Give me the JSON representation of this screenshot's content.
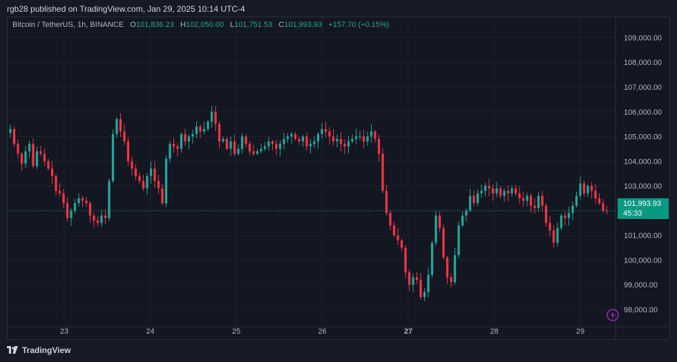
{
  "header": {
    "publisher": "rgb28 published on TradingView.com, Jan 29, 2025 10:14 UTC-4"
  },
  "legend": {
    "symbol": "Bitcoin / TetherUS, 1h, BINANCE",
    "o_label": "O",
    "o_value": "101,836.23",
    "h_label": "H",
    "h_value": "102,050.00",
    "l_label": "L",
    "l_value": "101,751.53",
    "c_label": "C",
    "c_value": "101,993.93",
    "change": "+157.70 (+0.15%)"
  },
  "price_tag": {
    "price": "101,993.93",
    "countdown": "45:33"
  },
  "footer": {
    "brand": "TradingView"
  },
  "colors": {
    "up": "#26a69a",
    "down": "#f23645",
    "background": "#131722",
    "grid": "#1e222d",
    "last_price": "#089981"
  },
  "chart_data": {
    "type": "candlestick",
    "x_ticks": [
      "23",
      "24",
      "25",
      "26",
      "27",
      "28",
      "29"
    ],
    "y_ticks": [
      "98,000.00",
      "99,000.00",
      "100,000.00",
      "101,000.00",
      "102,000.00",
      "103,000.00",
      "104,000.00",
      "105,000.00",
      "106,000.00",
      "107,000.00",
      "108,000.00",
      "109,000.00"
    ],
    "ylim": [
      97300,
      109600
    ],
    "last_price": 101993.93,
    "candles_approx_close": [
      105300,
      104700,
      104300,
      103900,
      104400,
      104700,
      103800,
      104400,
      104300,
      104000,
      103700,
      103400,
      102800,
      102700,
      102300,
      101700,
      102000,
      102300,
      102500,
      102400,
      102300,
      101800,
      101600,
      101500,
      101800,
      101700,
      103200,
      105100,
      105700,
      105200,
      104800,
      104000,
      103700,
      103400,
      103200,
      102900,
      103400,
      103700,
      103200,
      102900,
      102300,
      104100,
      104700,
      104600,
      104500,
      105100,
      104800,
      105000,
      105100,
      105400,
      105200,
      105300,
      105600,
      106000,
      105500,
      104800,
      104900,
      104500,
      104800,
      104300,
      104500,
      105000,
      104700,
      104400,
      104300,
      104400,
      104500,
      104600,
      104800,
      104700,
      104500,
      104700,
      104900,
      105000,
      105100,
      104900,
      104800,
      105000,
      104600,
      104700,
      104800,
      105100,
      105300,
      105200,
      105000,
      104800,
      104900,
      104700,
      104600,
      104800,
      104900,
      105000,
      105000,
      104800,
      105000,
      105200,
      104900,
      104300,
      102800,
      101900,
      101400,
      101000,
      100800,
      100500,
      99500,
      99000,
      99300,
      99200,
      98500,
      98700,
      99400,
      100700,
      101800,
      101300,
      100100,
      99300,
      99100,
      100200,
      101400,
      101800,
      102000,
      102600,
      102300,
      102700,
      102800,
      103000,
      102900,
      102700,
      102900,
      102600,
      102800,
      102700,
      102900,
      102700,
      102500,
      102400,
      102600,
      102200,
      102100,
      102600,
      102200,
      101500,
      101200,
      100700,
      101300,
      101800,
      101700,
      101900,
      102200,
      102600,
      103100,
      102700,
      103000,
      102800,
      102500,
      102300,
      102000,
      101993.93
    ]
  }
}
